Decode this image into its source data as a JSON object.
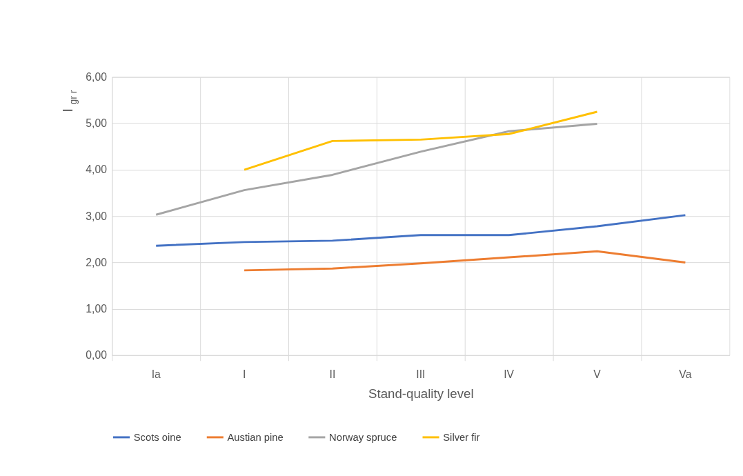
{
  "chart_data": {
    "type": "line",
    "xlabel": "Stand-quality level",
    "ylabel": "I$_{gr r}$",
    "categories": [
      "Ia",
      "I",
      "II",
      "III",
      "IV",
      "V",
      "Va"
    ],
    "ylim": [
      0,
      6
    ],
    "yticks": [
      {
        "value": 0,
        "label": "0,00"
      },
      {
        "value": 1,
        "label": "1,00"
      },
      {
        "value": 2,
        "label": "2,00"
      },
      {
        "value": 3,
        "label": "3,00"
      },
      {
        "value": 4,
        "label": "4,00"
      },
      {
        "value": 5,
        "label": "5,00"
      },
      {
        "value": 6,
        "label": "6,00"
      }
    ],
    "grid": true,
    "legend": "bottom",
    "marker": "none",
    "line_style": "solid",
    "series": [
      {
        "name": "Scots oine",
        "color": "#4472c4",
        "values": [
          2.36,
          2.44,
          2.47,
          2.59,
          2.59,
          2.78,
          3.02
        ]
      },
      {
        "name": "Austian pine",
        "color": "#ed7d31",
        "values": [
          null,
          1.83,
          1.87,
          1.98,
          2.11,
          2.24,
          2.0
        ]
      },
      {
        "name": "Norway spruce",
        "color": "#a5a5a5",
        "values": [
          3.03,
          3.56,
          3.89,
          4.39,
          4.83,
          4.99,
          null
        ]
      },
      {
        "name": "Silver fir",
        "color": "#ffc000",
        "values": [
          null,
          4.0,
          4.62,
          4.65,
          4.77,
          5.25,
          null
        ]
      }
    ]
  }
}
